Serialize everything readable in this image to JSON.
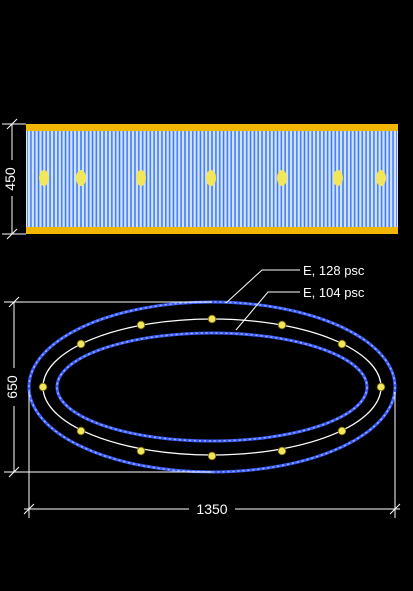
{
  "elevation": {
    "height_label": "450"
  },
  "plan": {
    "height_label": "650",
    "width_label": "1350",
    "callouts": [
      {
        "label": "E, 128 psc"
      },
      {
        "label": "E, 104 psc"
      }
    ]
  },
  "colors": {
    "background": "#000000",
    "band": "#f2b705",
    "column_fill": "#cfe3ff",
    "column_stroke": "#2f6df0",
    "outline": "#3a5cff",
    "ring": "#ffffff",
    "anchor": "#f2e65a",
    "dimension": "#ffffff"
  }
}
